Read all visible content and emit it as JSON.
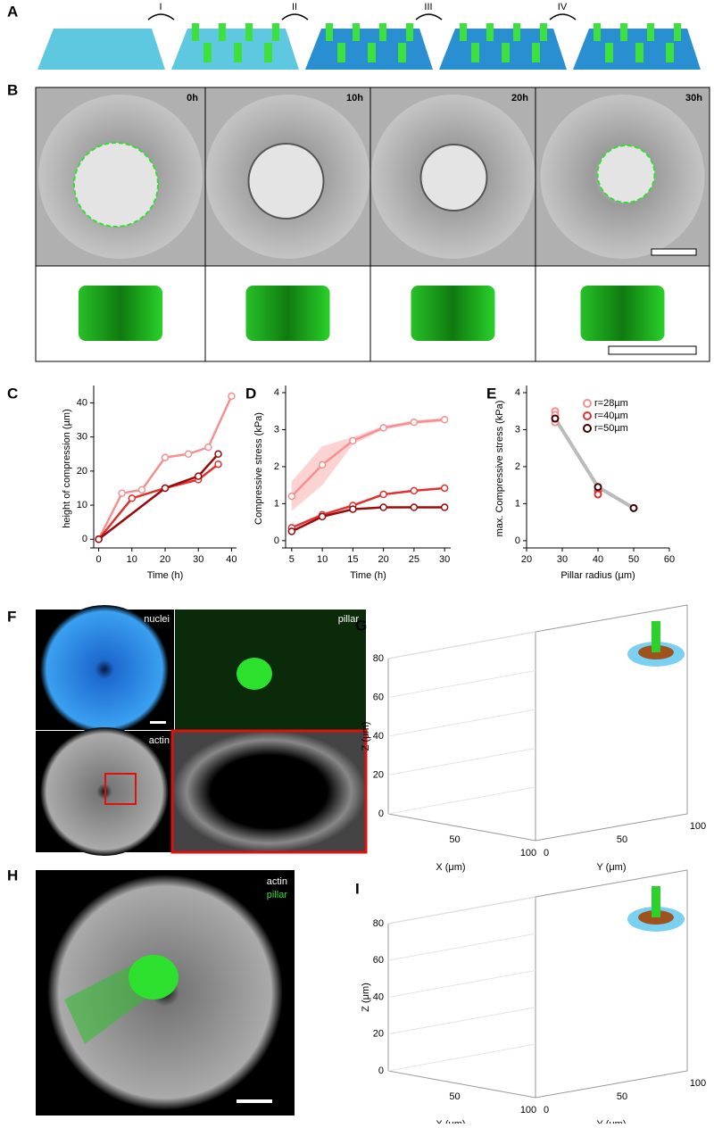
{
  "figure": {
    "A": {
      "label": "A",
      "steps": [
        "I",
        "II",
        "III",
        "IV"
      ]
    },
    "B": {
      "label": "B",
      "times": [
        "0h",
        "10h",
        "20h",
        "30h"
      ]
    },
    "F": {
      "label": "F",
      "captions": [
        "nuclei",
        "pillar",
        "actin"
      ]
    },
    "G": {
      "label": "G",
      "z_label": "Z (μm)",
      "x_label": "X (μm)",
      "y_label": "Y (μm)",
      "zticks": [
        0,
        20,
        40,
        60,
        80
      ],
      "xticks": [
        50,
        100
      ],
      "yticks": [
        0,
        50,
        100
      ]
    },
    "H": {
      "label": "H",
      "captions": [
        "actin",
        "pillar"
      ]
    },
    "I": {
      "label": "I",
      "z_label": "Z (μm)",
      "x_label": "X (μm)",
      "y_label": "Y (μm)",
      "zticks": [
        0,
        20,
        40,
        60,
        80
      ],
      "xticks": [
        50,
        100
      ],
      "yticks": [
        0,
        50,
        100
      ]
    }
  },
  "chart_data": [
    {
      "type": "line",
      "label": "C",
      "x_label": "Time (h)",
      "y_label": "height of compression (µm)",
      "xlim": [
        -1.5,
        41.5
      ],
      "ylim": [
        -1.5,
        43
      ],
      "xticks": [
        0,
        10,
        20,
        30,
        40
      ],
      "yticks": [
        0,
        10,
        20,
        30,
        40
      ],
      "series": [
        {
          "color": "#f59090",
          "x": [
            0,
            7,
            13,
            20,
            27,
            33,
            40
          ],
          "values": [
            0,
            13.5,
            14.5,
            24,
            25,
            27,
            42
          ]
        },
        {
          "color": "#e03030",
          "x": [
            0,
            10,
            20,
            30,
            36
          ],
          "values": [
            0,
            12,
            15,
            17.5,
            22
          ]
        },
        {
          "color": "#9b0a0a",
          "x": [
            0,
            20,
            30,
            36
          ],
          "values": [
            0,
            15,
            18.5,
            25
          ]
        }
      ]
    },
    {
      "type": "line",
      "label": "D",
      "x_label": "Time (h)",
      "y_label": "Compressive stress (kPa)",
      "xlim": [
        4,
        31
      ],
      "ylim": [
        -0.1,
        4
      ],
      "xticks": [
        5,
        10,
        15,
        20,
        25,
        30
      ],
      "yticks": [
        0,
        1,
        2,
        3,
        4
      ],
      "series": [
        {
          "color": "#f59090",
          "x": [
            5,
            10,
            15,
            20,
            25,
            30
          ],
          "values": [
            1.2,
            2.05,
            2.7,
            3.05,
            3.2,
            3.27
          ],
          "band_low": [
            0.8,
            1.5,
            2.6,
            3.0,
            3.15,
            3.22
          ],
          "band_high": [
            1.6,
            2.55,
            2.8,
            3.1,
            3.25,
            3.32
          ]
        },
        {
          "color": "#e03030",
          "x": [
            5,
            10,
            15,
            20,
            25,
            30
          ],
          "values": [
            0.35,
            0.7,
            0.95,
            1.25,
            1.35,
            1.42
          ]
        },
        {
          "color": "#9b0a0a",
          "x": [
            5,
            10,
            15,
            20,
            25,
            30
          ],
          "values": [
            0.25,
            0.65,
            0.85,
            0.9,
            0.9,
            0.9
          ]
        }
      ]
    },
    {
      "type": "scatter",
      "label": "E",
      "x_label": "Pillar radius (µm)",
      "y_label": "max. Compressive stress (kPa)",
      "xlim": [
        20,
        60
      ],
      "ylim": [
        -0.1,
        4
      ],
      "xticks": [
        20,
        30,
        40,
        50,
        60
      ],
      "yticks": [
        0,
        1,
        2,
        3,
        4
      ],
      "legend": "upper right",
      "trend_color": "#bbbbbb",
      "series": [
        {
          "name": "r=28µm",
          "color": "#f59090",
          "x": [
            28,
            28,
            28
          ],
          "values": [
            3.5,
            3.4,
            3.2
          ]
        },
        {
          "name": "r=40µm",
          "color": "#e03030",
          "x": [
            40,
            40
          ],
          "values": [
            1.35,
            1.25
          ]
        },
        {
          "name": "r=50µm",
          "color": "#3a0000",
          "x": [
            28,
            40,
            50
          ],
          "values": [
            3.3,
            1.45,
            0.88
          ]
        }
      ]
    }
  ]
}
